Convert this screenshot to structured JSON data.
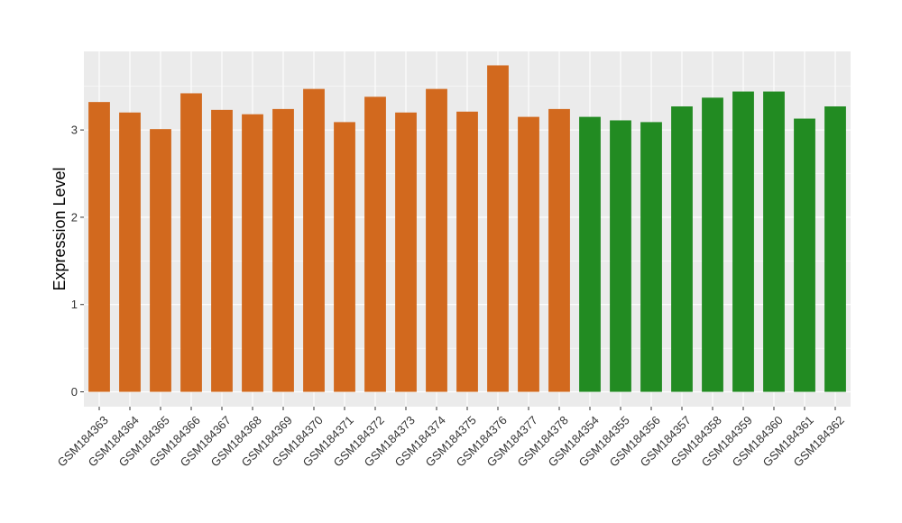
{
  "chart_data": {
    "type": "bar",
    "title": "",
    "xlabel": "",
    "ylabel": "Expression Level",
    "ylim": [
      -0.17,
      3.9
    ],
    "yticks": [
      0,
      1,
      2,
      3
    ],
    "grid": true,
    "categories": [
      "GSM184363",
      "GSM184364",
      "GSM184365",
      "GSM184366",
      "GSM184367",
      "GSM184368",
      "GSM184369",
      "GSM184370",
      "GSM184371",
      "GSM184372",
      "GSM184373",
      "GSM184374",
      "GSM184375",
      "GSM184376",
      "GSM184377",
      "GSM184378",
      "GSM184354",
      "GSM184355",
      "GSM184356",
      "GSM184357",
      "GSM184358",
      "GSM184359",
      "GSM184360",
      "GSM184361",
      "GSM184362"
    ],
    "values": [
      3.32,
      3.2,
      3.01,
      3.42,
      3.23,
      3.18,
      3.24,
      3.47,
      3.09,
      3.38,
      3.2,
      3.47,
      3.21,
      3.74,
      3.15,
      3.24,
      3.15,
      3.11,
      3.09,
      3.27,
      3.37,
      3.44,
      3.44,
      3.13,
      3.27
    ],
    "bar_colors": [
      "#D2691E",
      "#D2691E",
      "#D2691E",
      "#D2691E",
      "#D2691E",
      "#D2691E",
      "#D2691E",
      "#D2691E",
      "#D2691E",
      "#D2691E",
      "#D2691E",
      "#D2691E",
      "#D2691E",
      "#D2691E",
      "#D2691E",
      "#D2691E",
      "#228B22",
      "#228B22",
      "#228B22",
      "#228B22",
      "#228B22",
      "#228B22",
      "#228B22",
      "#228B22",
      "#228B22"
    ],
    "panel_background": "#EBEBEB",
    "grid_color": "#FFFFFF"
  }
}
